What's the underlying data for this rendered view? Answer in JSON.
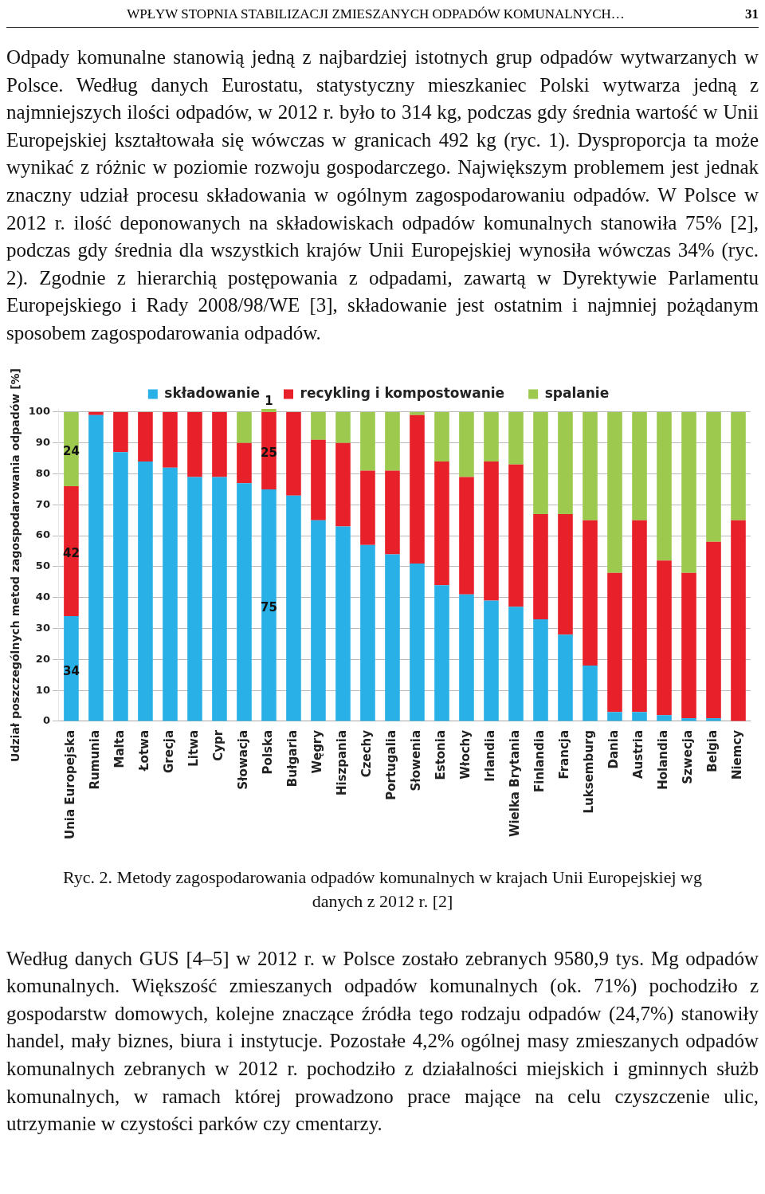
{
  "chart_data": {
    "type": "bar",
    "stacked": true,
    "ylabel": "Udział poszczególnych metod zagospodarowania odpadów [%]",
    "categories": [
      "Unia Europejska",
      "Rumunia",
      "Malta",
      "Łotwa",
      "Grecja",
      "Litwa",
      "Cypr",
      "Słowacja",
      "Polska",
      "Bułgaria",
      "Węgry",
      "Hiszpania",
      "Czechy",
      "Portugalia",
      "Słowenia",
      "Estonia",
      "Włochy",
      "Irlandia",
      "Wielka Brytania",
      "Finlandia",
      "Francja",
      "Luksemburg",
      "Dania",
      "Austria",
      "Holandia",
      "Szwecja",
      "Belgia",
      "Niemcy"
    ],
    "series": [
      {
        "name": "składowanie",
        "color": "#29b0e6",
        "values": [
          34,
          99,
          87,
          84,
          82,
          79,
          79,
          77,
          75,
          73,
          65,
          63,
          57,
          54,
          51,
          44,
          41,
          39,
          37,
          33,
          28,
          18,
          3,
          3,
          2,
          1,
          1,
          0
        ],
        "value_labels": [
          "34",
          null,
          null,
          null,
          null,
          null,
          null,
          null,
          "75",
          null,
          null,
          null,
          null,
          null,
          null,
          null,
          null,
          null,
          null,
          null,
          null,
          null,
          null,
          null,
          null,
          null,
          null,
          null
        ]
      },
      {
        "name": "recykling i kompostowanie",
        "color": "#e8202a",
        "values": [
          42,
          1,
          13,
          16,
          18,
          21,
          21,
          13,
          25,
          27,
          26,
          27,
          24,
          27,
          48,
          40,
          38,
          45,
          46,
          34,
          39,
          47,
          45,
          62,
          50,
          47,
          57,
          65
        ],
        "value_labels": [
          "42",
          null,
          null,
          null,
          null,
          null,
          null,
          null,
          "25",
          null,
          null,
          null,
          null,
          null,
          null,
          null,
          null,
          null,
          null,
          null,
          null,
          null,
          null,
          null,
          null,
          null,
          null,
          null
        ]
      },
      {
        "name": "spalanie",
        "color": "#9cc94e",
        "values": [
          24,
          0,
          0,
          0,
          0,
          0,
          0,
          10,
          1,
          0,
          9,
          10,
          19,
          19,
          1,
          16,
          21,
          16,
          17,
          33,
          33,
          35,
          52,
          35,
          48,
          52,
          42,
          35
        ],
        "value_labels": [
          "24",
          null,
          null,
          null,
          null,
          null,
          null,
          null,
          "1",
          null,
          null,
          null,
          null,
          null,
          null,
          null,
          null,
          null,
          null,
          null,
          null,
          null,
          null,
          null,
          null,
          null,
          null,
          null
        ]
      }
    ],
    "ylim": [
      0,
      101
    ],
    "yticks": [
      0,
      10,
      20,
      30,
      40,
      50,
      60,
      70,
      80,
      90,
      100
    ],
    "grid": "y",
    "legend": "top",
    "annotations": [
      "WPŁYW STOPNIA STABILIZACJI ZMIESZANYCH ODPADÓW KOMUNALNYCH…",
      "31",
      "Odpady komunalne stanowią jedną z najbardziej istotnych grup odpadów wytwarzanych w Polsce. Według danych Eurostatu, statystyczny mieszkaniec Polski wytwarza jedną z najmniejszych ilości odpadów, w 2012 r. było to 314 kg, podczas gdy średnia wartość w Unii Europejskiej kształtowała się wówczas w granicach 492 kg (ryc. 1). Dysproporcja ta może wynikać z różnic w poziomie rozwoju gospodarczego. Największym problemem jest jednak znaczny udział procesu składowania w ogólnym zagospodarowaniu odpadów. W Polsce w 2012 r. ilość deponowanych na składowiskach odpadów komunalnych stanowiła 75% [2], podczas gdy średnia dla wszystkich krajów Unii Europejskiej wynosiła wówczas 34% (ryc. 2). Zgodnie z hierarchią postępowania z odpadami, zawartą w Dyrektywie Parlamentu Europejskiego i Rady 2008/98/WE [3], składowanie jest ostatnim i najmniej pożądanym sposobem zagospodarowania odpadów.",
      "Ryc. 2. Metody zagospodarowania odpadów komunalnych w krajach Unii Europejskiej wg danych z 2012 r. [2]",
      "Według danych GUS [4–5] w 2012 r. w Polsce zostało zebranych 9580,9 tys. Mg odpadów komunalnych. Większość zmieszanych odpadów komunalnych (ok. 71%) pochodziło z gospodarstw domowych, kolejne znaczące źródła tego rodzaju odpadów (24,7%) stanowiły handel, mały biznes, biura i instytucje. Pozostałe 4,2% ogólnej masy zmieszanych odpadów komunalnych zebranych w 2012 r. pochodziło z działalności miejskich i gminnych służb komunalnych, w ramach której prowadzono prace mające na celu czyszczenie ulic, utrzymanie w czystości parków czy cmentarzy."
    ]
  }
}
